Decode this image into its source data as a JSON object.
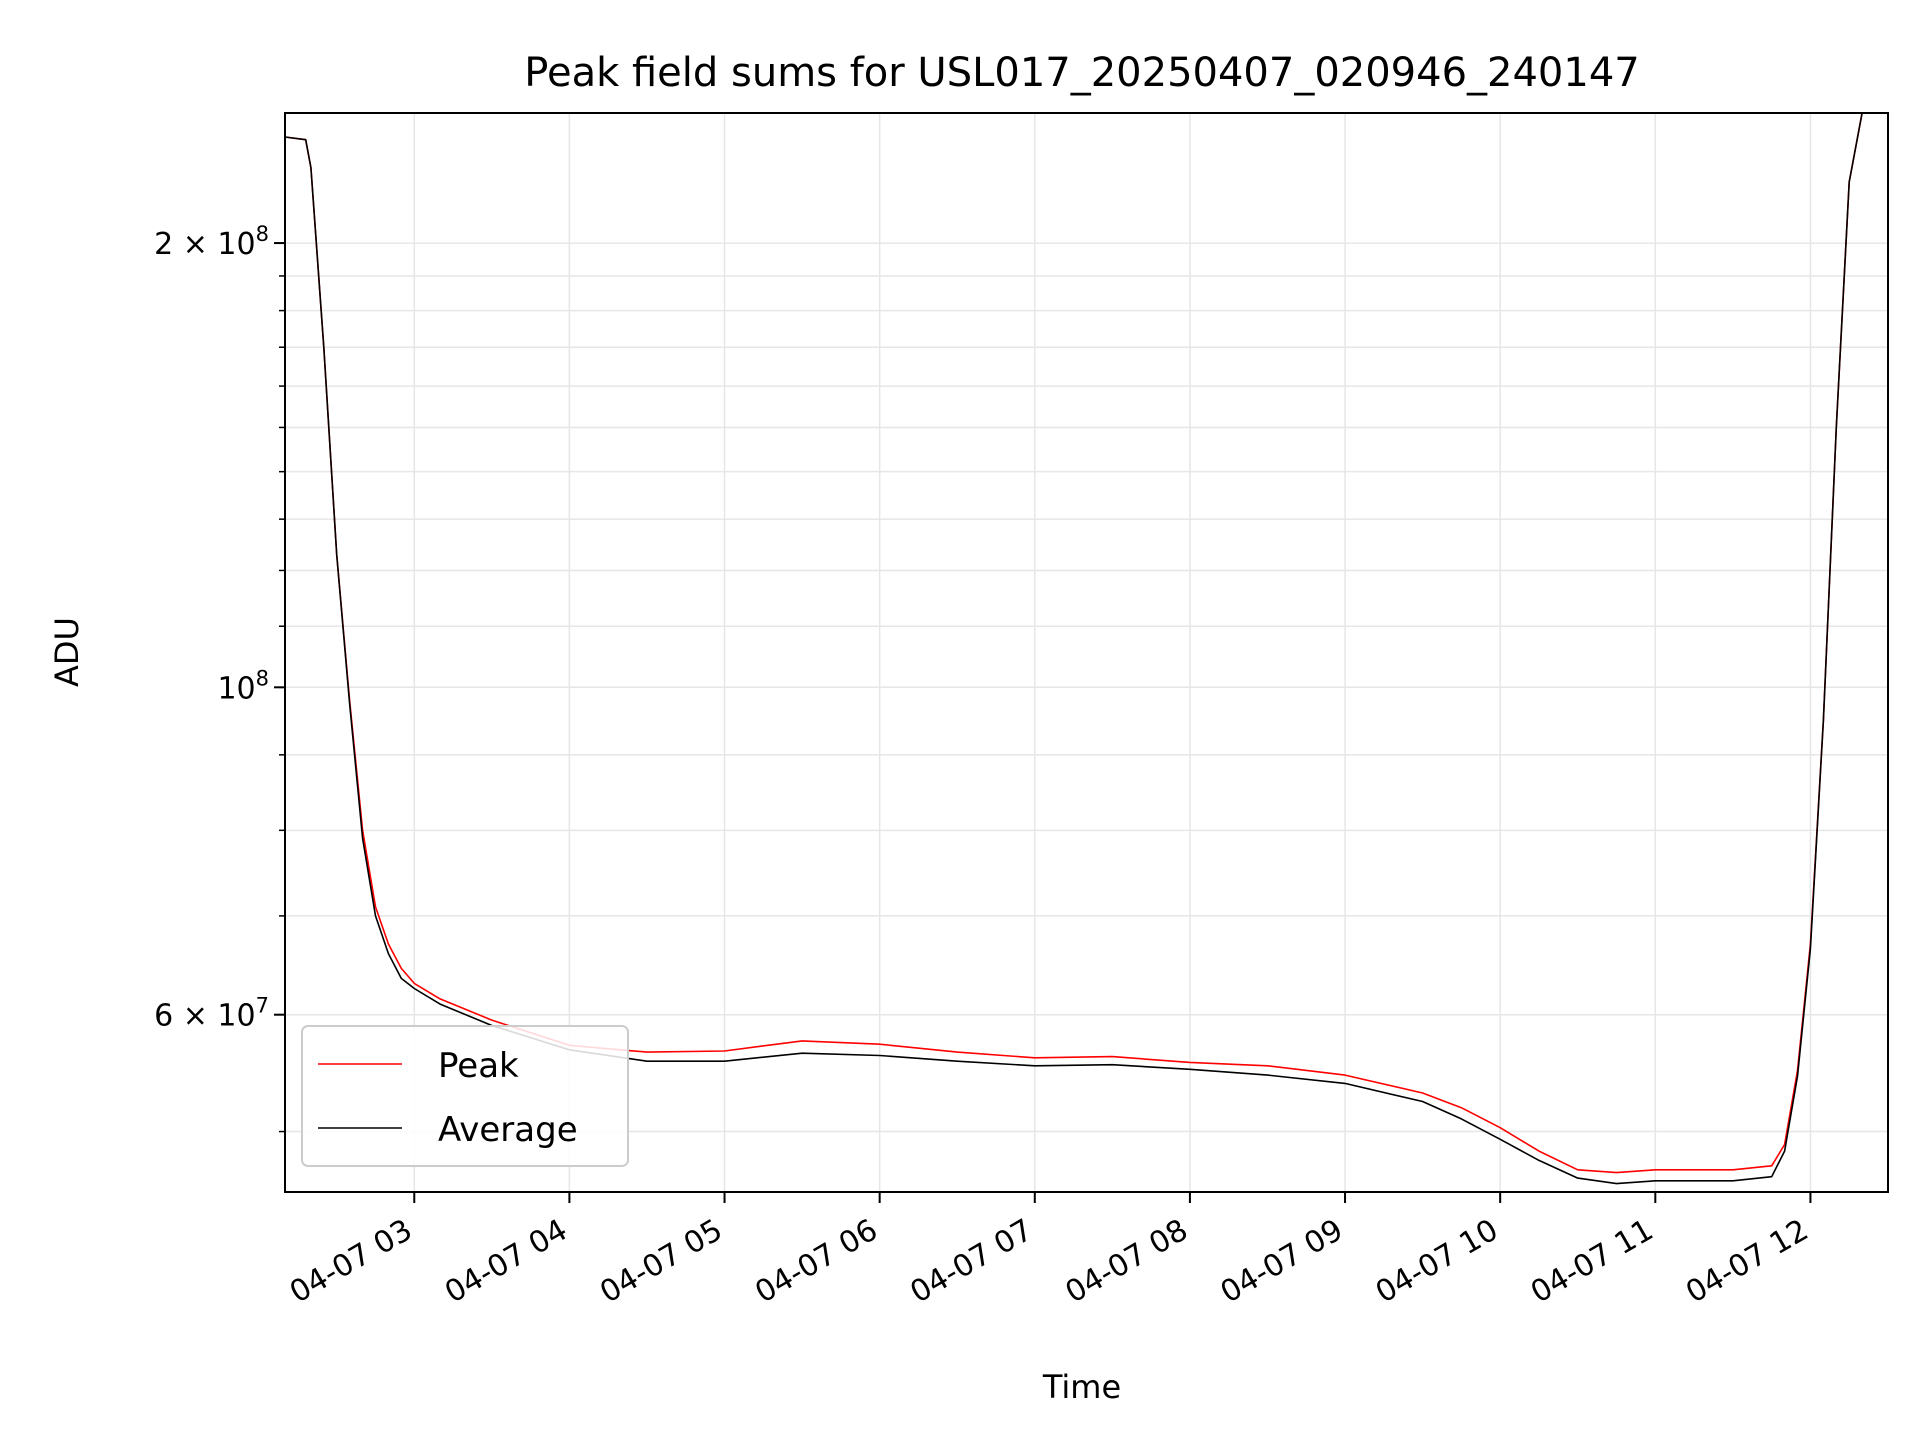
{
  "chart_data": {
    "type": "line",
    "title": "Peak field sums for USL017_20250407_020946_240147",
    "xlabel": "Time",
    "ylabel": "ADU",
    "y_scale": "log",
    "ylim": [
      45500000,
      245000000
    ],
    "xlim": [
      "2025-04-07 02:10",
      "2025-04-07 12:30"
    ],
    "grid": true,
    "legend_position": "lower-left",
    "x_ticks": [
      "04-07 03",
      "04-07 04",
      "04-07 05",
      "04-07 06",
      "04-07 07",
      "04-07 08",
      "04-07 09",
      "04-07 10",
      "04-07 11",
      "04-07 12"
    ],
    "y_ticks": [
      {
        "value": 200000000,
        "mantissa": "2",
        "exponent": "8"
      },
      {
        "value": 100000000,
        "mantissa": "",
        "exponent": "8"
      },
      {
        "value": 60000000,
        "mantissa": "6",
        "exponent": "7"
      }
    ],
    "x": [
      "2025-04-07 02:10",
      "2025-04-07 02:18",
      "2025-04-07 02:20",
      "2025-04-07 02:25",
      "2025-04-07 02:30",
      "2025-04-07 02:35",
      "2025-04-07 02:40",
      "2025-04-07 02:45",
      "2025-04-07 02:50",
      "2025-04-07 02:55",
      "2025-04-07 03:00",
      "2025-04-07 03:10",
      "2025-04-07 03:30",
      "2025-04-07 04:00",
      "2025-04-07 04:30",
      "2025-04-07 05:00",
      "2025-04-07 05:30",
      "2025-04-07 06:00",
      "2025-04-07 06:30",
      "2025-04-07 07:00",
      "2025-04-07 07:30",
      "2025-04-07 08:00",
      "2025-04-07 08:30",
      "2025-04-07 09:00",
      "2025-04-07 09:30",
      "2025-04-07 09:45",
      "2025-04-07 10:00",
      "2025-04-07 10:15",
      "2025-04-07 10:30",
      "2025-04-07 10:45",
      "2025-04-07 11:00",
      "2025-04-07 11:30",
      "2025-04-07 11:45",
      "2025-04-07 11:50",
      "2025-04-07 11:55",
      "2025-04-07 12:00",
      "2025-04-07 12:05",
      "2025-04-07 12:10",
      "2025-04-07 12:15",
      "2025-04-07 12:20"
    ],
    "series": [
      {
        "name": "Peak",
        "color": "#ff0000",
        "values": [
          236000000,
          235000000,
          225000000,
          170000000,
          123000000,
          98000000,
          80000000,
          71000000,
          67000000,
          64500000,
          63000000,
          61500000,
          59500000,
          57200000,
          56600000,
          56700000,
          57600000,
          57300000,
          56600000,
          56100000,
          56200000,
          55700000,
          55400000,
          54600000,
          53100000,
          51900000,
          50300000,
          48500000,
          47100000,
          46900000,
          47100000,
          47100000,
          47400000,
          49000000,
          55000000,
          67000000,
          95000000,
          150000000,
          220000000,
          245000000
        ]
      },
      {
        "name": "Average",
        "color": "#000000",
        "values": [
          236000000,
          235000000,
          225000000,
          170000000,
          123000000,
          97500000,
          79000000,
          70000000,
          66000000,
          63500000,
          62500000,
          61000000,
          59000000,
          56800000,
          55800000,
          55800000,
          56500000,
          56300000,
          55800000,
          55400000,
          55500000,
          55100000,
          54600000,
          53900000,
          52400000,
          51000000,
          49400000,
          47800000,
          46500000,
          46100000,
          46300000,
          46300000,
          46600000,
          48500000,
          54500000,
          66500000,
          95000000,
          150000000,
          220000000,
          245000000
        ]
      }
    ]
  }
}
